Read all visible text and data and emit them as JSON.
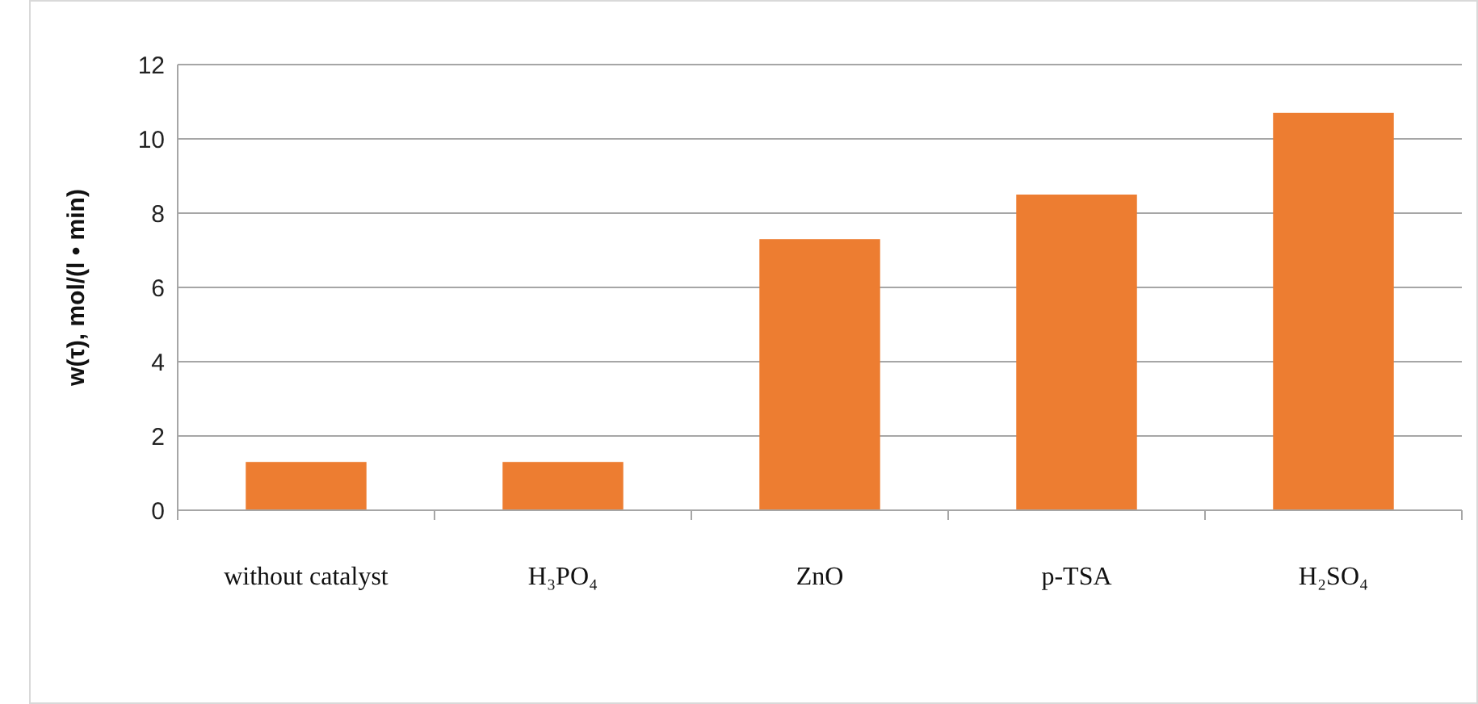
{
  "chart_data": {
    "type": "bar",
    "ylabel": "w(τ), mol/(l • min)",
    "categories": [
      "without catalyst",
      "H₃PO₄",
      "ZnO",
      "p-TSA",
      "H₂SO₄"
    ],
    "values": [
      1.3,
      1.3,
      7.3,
      8.5,
      10.7
    ],
    "color": "#ed7d31",
    "ylim": [
      0,
      12
    ],
    "yticks": [
      0,
      2,
      4,
      6,
      8,
      10,
      12
    ],
    "grid": "y"
  }
}
